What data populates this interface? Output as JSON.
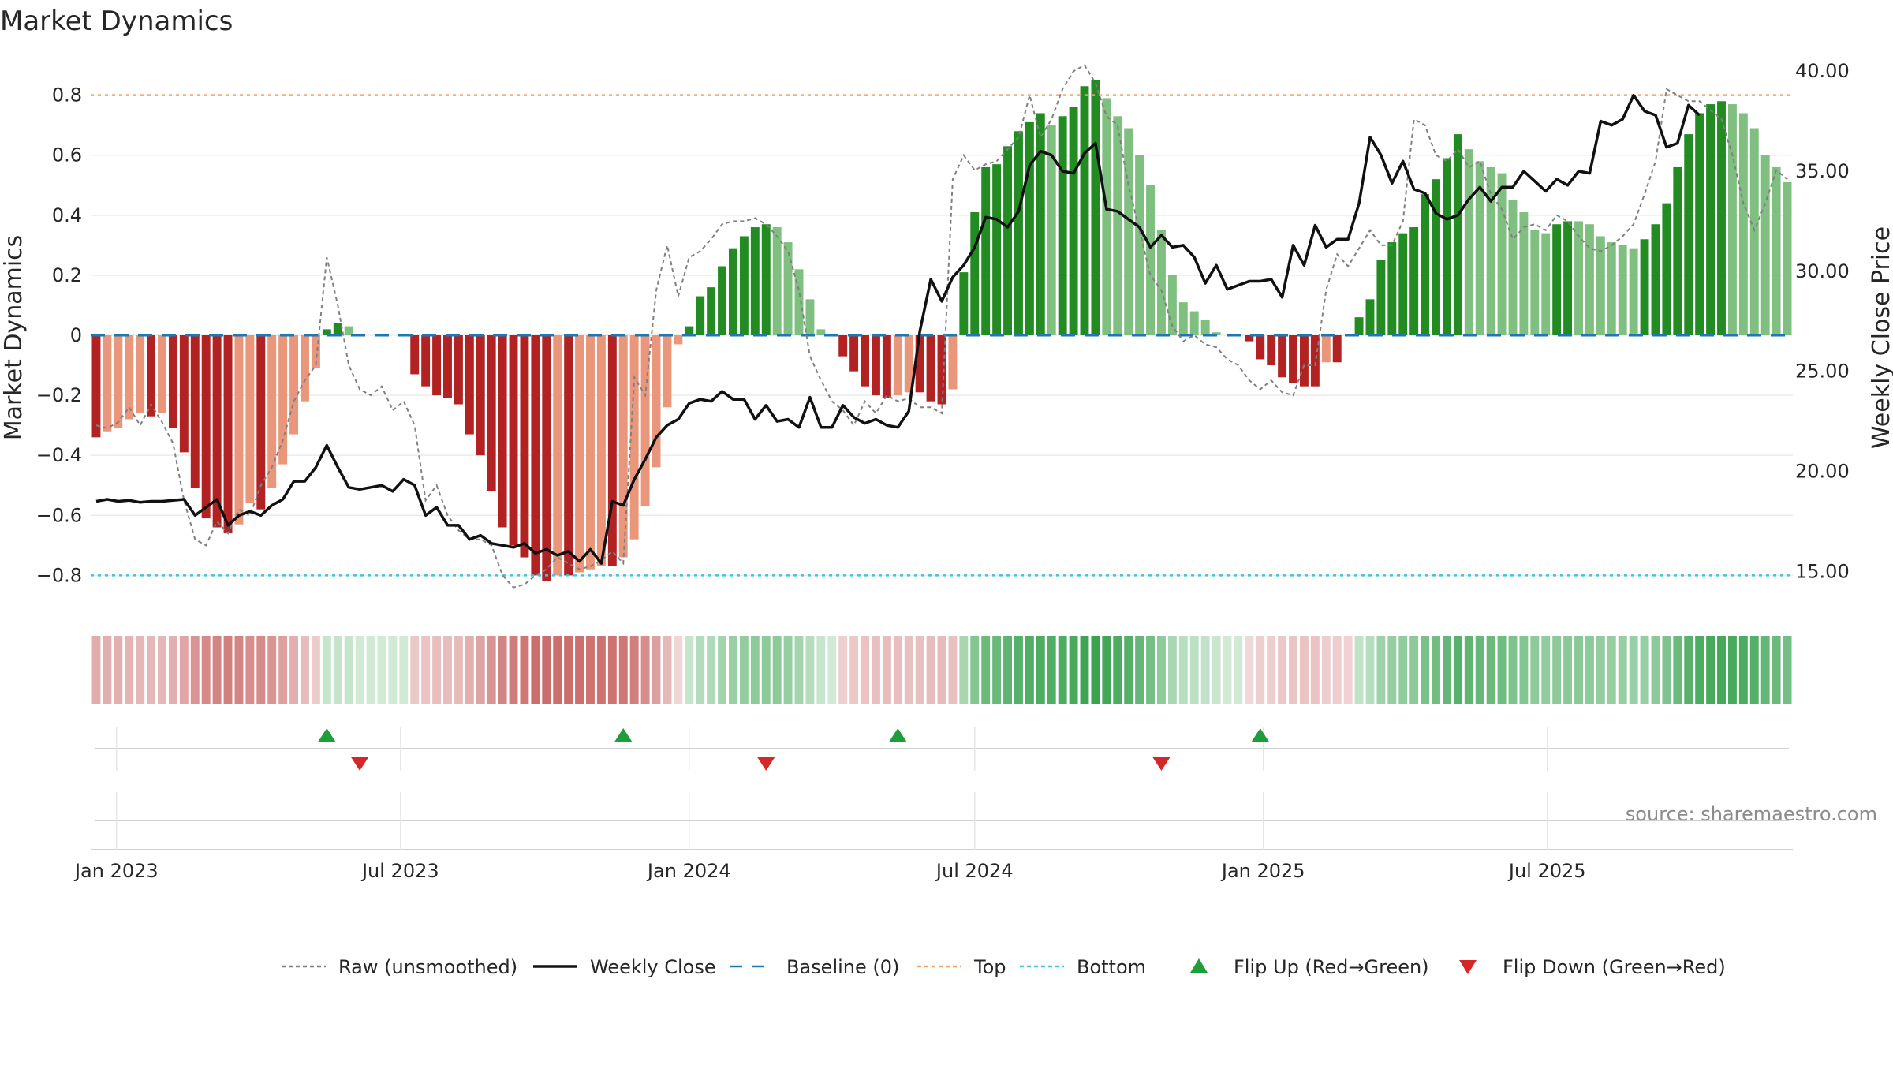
{
  "chart_data": {
    "type": "bar",
    "title": "Market Dynamics",
    "ylabel_left": "Market Dynamics",
    "ylabel_right": "Weekly Close Price",
    "source": "source: sharemaestro.com",
    "x_start": "2022-12-19",
    "week_days": 7,
    "ylim_left": [
      -0.92,
      0.92
    ],
    "ylim_right": [
      13.0,
      40.6
    ],
    "left_ticks": [
      "0.8",
      "0.6",
      "0.4",
      "0.2",
      "0",
      "−0.2",
      "−0.4",
      "−0.6",
      "−0.8"
    ],
    "left_tick_values": [
      0.8,
      0.6,
      0.4,
      0.2,
      0,
      -0.2,
      -0.4,
      -0.6,
      -0.8
    ],
    "right_ticks": [
      "40.00",
      "35.00",
      "30.00",
      "25.00",
      "20.00",
      "15.00"
    ],
    "right_tick_values": [
      40,
      35,
      30,
      25,
      20,
      15
    ],
    "x_ticks": [
      "Jan 2023",
      "Jul 2023",
      "Jan 2024",
      "Jul 2024",
      "Jan 2025",
      "Jul 2025"
    ],
    "x_tick_dates": [
      "2023-01-01",
      "2023-07-01",
      "2024-01-01",
      "2024-07-01",
      "2025-01-01",
      "2025-07-01"
    ],
    "top_level": 0.8,
    "bottom_level": -0.8,
    "baseline": 0,
    "grid": true,
    "colors": {
      "red_strong": "#b22222",
      "red_light": "#e9967a",
      "green_strong": "#228b22",
      "green_light": "#7fbf7f",
      "top_line": "#f4a460",
      "bottom_line": "#40c4e0",
      "baseline": "#1f77b4",
      "close": "#111111",
      "raw": "#808080",
      "flip_up": "#1e9e3a",
      "flip_down": "#d62728"
    },
    "series": [
      {
        "name": "Market Dynamics (smoothed)",
        "values": [
          -0.34,
          -0.32,
          -0.31,
          -0.28,
          -0.26,
          -0.27,
          -0.26,
          -0.31,
          -0.39,
          -0.51,
          -0.61,
          -0.64,
          -0.66,
          -0.63,
          -0.56,
          -0.58,
          -0.51,
          -0.43,
          -0.33,
          -0.22,
          -0.11,
          0.02,
          0.04,
          0.03,
          0.0,
          0.0,
          0.0,
          0.0,
          0.0,
          -0.13,
          -0.17,
          -0.2,
          -0.21,
          -0.23,
          -0.33,
          -0.4,
          -0.52,
          -0.64,
          -0.7,
          -0.74,
          -0.8,
          -0.82,
          -0.8,
          -0.8,
          -0.79,
          -0.78,
          -0.77,
          -0.77,
          -0.74,
          -0.68,
          -0.57,
          -0.44,
          -0.24,
          -0.03,
          0.03,
          0.13,
          0.16,
          0.23,
          0.29,
          0.33,
          0.36,
          0.37,
          0.36,
          0.31,
          0.22,
          0.12,
          0.02,
          0.0,
          -0.07,
          -0.12,
          -0.17,
          -0.2,
          -0.21,
          -0.2,
          -0.19,
          -0.19,
          -0.22,
          -0.23,
          -0.18,
          0.21,
          0.41,
          0.56,
          0.57,
          0.63,
          0.68,
          0.71,
          0.74,
          0.7,
          0.73,
          0.76,
          0.83,
          0.85,
          0.79,
          0.73,
          0.69,
          0.6,
          0.5,
          0.35,
          0.2,
          0.11,
          0.08,
          0.05,
          0.01,
          0.0,
          0.0,
          -0.02,
          -0.08,
          -0.1,
          -0.14,
          -0.16,
          -0.17,
          -0.17,
          -0.09,
          -0.09,
          0.0,
          0.06,
          0.12,
          0.25,
          0.31,
          0.34,
          0.36,
          0.47,
          0.52,
          0.59,
          0.67,
          0.62,
          0.58,
          0.56,
          0.54,
          0.45,
          0.41,
          0.35,
          0.34,
          0.37,
          0.38,
          0.38,
          0.37,
          0.33,
          0.31,
          0.3,
          0.29,
          0.32,
          0.37,
          0.44,
          0.56,
          0.67,
          0.74,
          0.77,
          0.78,
          0.77,
          0.74,
          0.69,
          0.6,
          0.56,
          0.51
        ]
      },
      {
        "name": "Raw (unsmoothed)",
        "values": [
          -0.3,
          -0.31,
          -0.29,
          -0.24,
          -0.3,
          -0.23,
          -0.29,
          -0.36,
          -0.55,
          -0.68,
          -0.7,
          -0.62,
          -0.66,
          -0.58,
          -0.6,
          -0.5,
          -0.44,
          -0.35,
          -0.22,
          -0.15,
          -0.1,
          0.26,
          0.1,
          -0.1,
          -0.18,
          -0.2,
          -0.17,
          -0.25,
          -0.22,
          -0.3,
          -0.55,
          -0.5,
          -0.6,
          -0.65,
          -0.68,
          -0.68,
          -0.7,
          -0.8,
          -0.84,
          -0.83,
          -0.8,
          -0.78,
          -0.74,
          -0.76,
          -0.78,
          -0.77,
          -0.75,
          -0.72,
          -0.76,
          -0.14,
          -0.2,
          0.15,
          0.3,
          0.13,
          0.26,
          0.28,
          0.32,
          0.37,
          0.38,
          0.38,
          0.39,
          0.37,
          0.33,
          0.28,
          0.15,
          -0.07,
          -0.15,
          -0.22,
          -0.25,
          -0.3,
          -0.22,
          -0.26,
          -0.2,
          -0.22,
          -0.21,
          -0.24,
          -0.24,
          -0.26,
          0.52,
          0.6,
          0.55,
          0.57,
          0.58,
          0.62,
          0.66,
          0.8,
          0.66,
          0.72,
          0.82,
          0.88,
          0.9,
          0.84,
          0.73,
          0.7,
          0.5,
          0.35,
          0.2,
          0.15,
          0.03,
          -0.02,
          0.0,
          -0.03,
          -0.04,
          -0.08,
          -0.1,
          -0.15,
          -0.18,
          -0.15,
          -0.19,
          -0.2,
          -0.1,
          -0.1,
          0.15,
          0.27,
          0.23,
          0.29,
          0.35,
          0.3,
          0.3,
          0.38,
          0.72,
          0.7,
          0.6,
          0.58,
          0.62,
          0.56,
          0.58,
          0.47,
          0.42,
          0.32,
          0.36,
          0.37,
          0.35,
          0.4,
          0.38,
          0.33,
          0.29,
          0.28,
          0.3,
          0.33,
          0.37,
          0.47,
          0.58,
          0.82,
          0.8,
          0.78,
          0.78,
          0.75,
          0.72,
          0.6,
          0.44,
          0.35,
          0.44,
          0.55,
          0.52
        ]
      },
      {
        "name": "Weekly Close",
        "axis": "right",
        "values": [
          18.5,
          18.6,
          18.5,
          18.55,
          18.45,
          18.5,
          18.5,
          18.55,
          18.6,
          17.8,
          18.2,
          18.6,
          17.3,
          17.8,
          18.0,
          17.8,
          18.3,
          18.6,
          19.5,
          19.5,
          20.2,
          21.3,
          20.2,
          19.2,
          19.1,
          19.2,
          19.3,
          19.0,
          19.6,
          19.3,
          17.8,
          18.2,
          17.3,
          17.3,
          16.6,
          16.8,
          16.4,
          16.3,
          16.2,
          16.4,
          15.9,
          16.1,
          15.8,
          16.0,
          15.5,
          16.1,
          15.4,
          18.5,
          18.3,
          19.6,
          20.6,
          21.7,
          22.3,
          22.6,
          23.4,
          23.6,
          23.5,
          24.0,
          23.6,
          23.6,
          22.6,
          23.3,
          22.5,
          22.6,
          22.2,
          23.7,
          22.2,
          22.2,
          23.3,
          22.7,
          22.4,
          22.6,
          22.3,
          22.2,
          23.0,
          27.0,
          29.6,
          28.5,
          29.7,
          30.3,
          31.2,
          32.7,
          32.6,
          32.2,
          33.0,
          35.3,
          36.0,
          35.8,
          35.0,
          34.9,
          35.9,
          36.4,
          33.1,
          33.0,
          32.6,
          32.2,
          31.2,
          31.8,
          31.2,
          31.3,
          30.7,
          29.4,
          30.3,
          29.1,
          29.3,
          29.5,
          29.5,
          29.6,
          28.7,
          31.3,
          30.3,
          32.3,
          31.2,
          31.6,
          31.6,
          33.4,
          36.7,
          35.8,
          34.4,
          35.5,
          34.1,
          33.9,
          32.9,
          32.6,
          32.8,
          33.6,
          34.2,
          33.5,
          34.2,
          34.2,
          35.0,
          34.5,
          34.0,
          34.6,
          34.3,
          35.0,
          34.9,
          37.5,
          37.3,
          37.6,
          38.8,
          38.0,
          37.8,
          36.2,
          36.4,
          38.3,
          37.8
        ]
      }
    ],
    "flip_up_weeks": [
      21,
      48,
      73,
      106
    ],
    "flip_down_weeks": [
      24,
      61,
      97
    ],
    "legend": [
      {
        "label": "Raw (unsmoothed)",
        "kind": "dotted-line",
        "color": "#808080"
      },
      {
        "label": "Weekly Close",
        "kind": "solid-line",
        "color": "#111111"
      },
      {
        "label": "Baseline (0)",
        "kind": "dashed-line",
        "color": "#1f77b4"
      },
      {
        "label": "Top",
        "kind": "dotted-line",
        "color": "#f4a460"
      },
      {
        "label": "Bottom",
        "kind": "dotted-line",
        "color": "#40c4e0"
      },
      {
        "label": "Flip Up (Red→Green)",
        "kind": "triangle-up",
        "color": "#1e9e3a"
      },
      {
        "label": "Flip Down (Green→Red)",
        "kind": "triangle-down",
        "color": "#d62728"
      }
    ],
    "legend_position": "bottom-center"
  }
}
